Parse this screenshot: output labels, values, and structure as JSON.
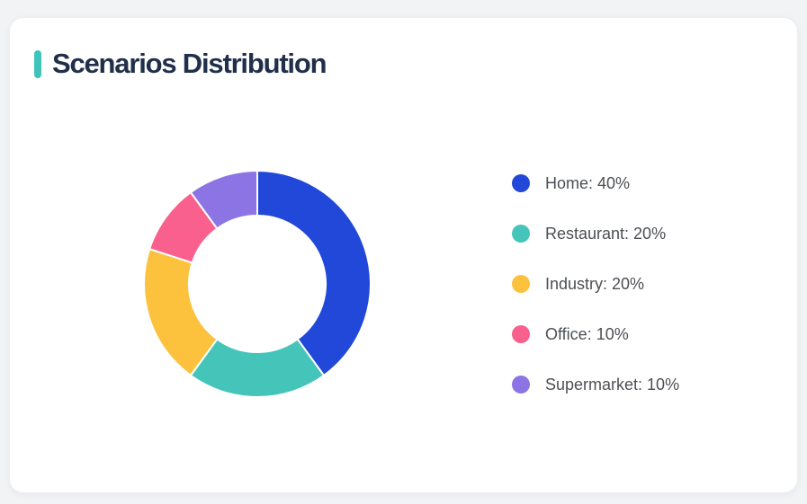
{
  "page": {
    "background": "#f2f3f5"
  },
  "card": {
    "title": "Scenarios Distribution",
    "accent_color": "#3ec4bb",
    "title_color": "#21304a"
  },
  "chart_data": {
    "type": "pie",
    "subtype": "donut",
    "title": "Scenarios Distribution",
    "categories": [
      "Home",
      "Restaurant",
      "Industry",
      "Office",
      "Supermarket"
    ],
    "values": [
      40,
      20,
      20,
      10,
      10
    ],
    "unit": "%",
    "colors": [
      "#2148d8",
      "#45c5ba",
      "#fcc23d",
      "#f9608d",
      "#8d74e4"
    ],
    "start_angle_deg": 0,
    "clockwise": true,
    "inner_radius_ratio": 0.6,
    "legend_position": "right",
    "legend_format": "{label}: {value}%"
  }
}
